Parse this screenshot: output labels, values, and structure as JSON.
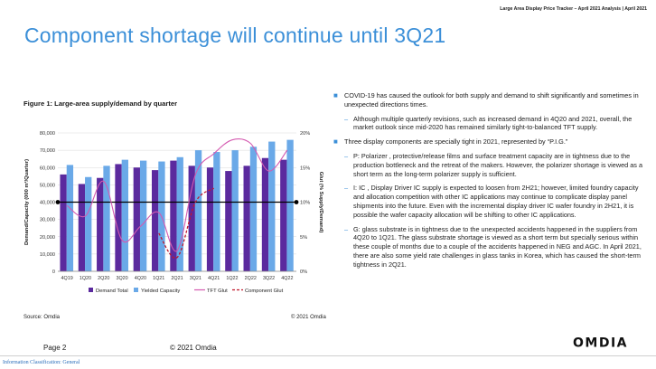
{
  "header": {
    "text": "Large Area Display Price Tracker – April 2021 Analysis | April 2021"
  },
  "title": "Component shortage will continue until 3Q21",
  "figure": {
    "caption": "Figure 1: Large-area supply/demand by quarter",
    "source": "Source: Omdia",
    "copyright": "© 2021 Omdia"
  },
  "colors": {
    "demand": "#5b2a9e",
    "capacity": "#6aa9e8",
    "tft_glut": "#d45ab0",
    "component_glut": "#c0182c",
    "title": "#3b8fd8"
  },
  "chart_data": {
    "type": "bar",
    "categories": [
      "4Q19",
      "1Q20",
      "2Q20",
      "3Q20",
      "4Q20",
      "1Q21",
      "2Q21",
      "3Q21",
      "4Q21",
      "1Q22",
      "2Q22",
      "3Q22",
      "4Q22"
    ],
    "ylabel": "Demand/Capacity (000 m²/Quarter)",
    "y2label": "Glut (% Supply/Demand)",
    "ylim": [
      0,
      80000
    ],
    "y2lim": [
      0,
      20
    ],
    "yticks": [
      "0",
      "10,000",
      "20,000",
      "30,000",
      "40,000",
      "50,000",
      "60,000",
      "70,000",
      "80,000"
    ],
    "y2ticks": [
      "0%",
      "5%",
      "10%",
      "15%",
      "20%"
    ],
    "grid": true,
    "legend_position": "bottom",
    "series": [
      {
        "name": "Demand Total",
        "kind": "bar",
        "axis": "left",
        "values": [
          56000,
          50500,
          54000,
          62000,
          60000,
          58500,
          64000,
          61000,
          60000,
          58000,
          61000,
          65500,
          64500
        ]
      },
      {
        "name": "Yielded Capacity",
        "kind": "bar",
        "axis": "left",
        "values": [
          61500,
          54500,
          61000,
          64500,
          64000,
          63500,
          66000,
          70000,
          69000,
          70000,
          72000,
          75000,
          76000
        ]
      },
      {
        "name": "TFT Glut",
        "kind": "line",
        "axis": "right",
        "values": [
          9.5,
          8,
          13,
          4.5,
          6.5,
          8.5,
          3,
          14,
          17,
          19,
          18.5,
          14.5,
          17.5
        ]
      },
      {
        "name": "Component Glut",
        "kind": "dashed-line",
        "axis": "right",
        "values": [
          null,
          null,
          null,
          null,
          null,
          5.5,
          2,
          10,
          12,
          null,
          null,
          null,
          null
        ]
      }
    ],
    "reference_line": {
      "axis": "right",
      "value": 10
    }
  },
  "bullets": [
    {
      "text": "COVID-19 has caused the outlook for both supply and demand to shift significantly and sometimes in unexpected directions times.",
      "subs": [
        "Although multiple quarterly revisions, such as increased demand in 4Q20 and 2021, overall, the market outlook since mid-2020 has remained similarly tight-to-balanced TFT supply."
      ]
    },
    {
      "text": "Three display components are specially tight in 2021, represented by “P.I.G.”",
      "subs": [
        "P: Polarizer , protective/release films and surface treatment capacity are in tightness due to the production bottleneck and the retreat of the makers. However, the polarizer shortage is viewed as a short term as the long-term polarizer supply is sufficient.",
        "I: IC , Display Driver IC supply is expected to loosen from 2H21; however, limited foundry capacity and allocation competition with other IC applications may continue to complicate display panel shipments into the future. Even with the incremental display driver IC wafer foundry in 2H21, it is possible the wafer capacity allocation will be shifting to other IC applications.",
        "G: glass substrate is in tightness due to the unexpected accidents happened in the suppliers from 4Q20 to 1Q21. The glass substrate shortage is viewed as a short term but specially serious within these couple of months due to a couple of the accidents happened in NEG and AGC. In April 2021, there are also some yield rate challenges in glass tanks in Korea, which has caused the short-term tightness in 2Q21."
      ]
    }
  ],
  "footer": {
    "page": "Page 2",
    "copyright": "© 2021 Omdia",
    "logo": "OMDIA",
    "classification": "Information Classification: General"
  }
}
